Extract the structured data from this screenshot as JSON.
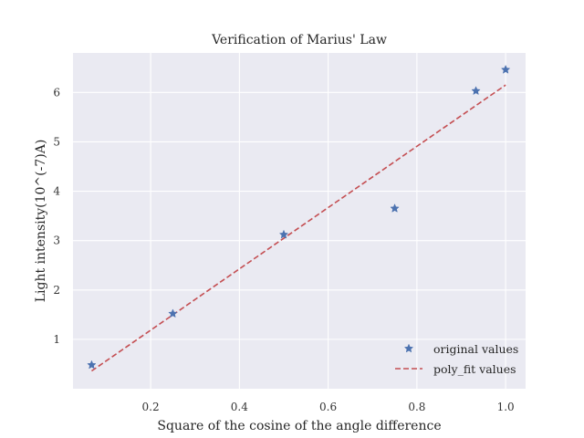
{
  "chart_data": {
    "type": "scatter",
    "title": "Verification of Marius' Law",
    "xlabel": "Square of the cosine of the angle difference",
    "ylabel": "Light intensity(10^(-7)A)",
    "xlim": [
      0.025,
      1.045
    ],
    "ylim": [
      0.0,
      6.8
    ],
    "xticks": [
      0.2,
      0.4,
      0.6,
      0.8,
      1.0
    ],
    "xtick_labels": [
      "0.2",
      "0.4",
      "0.6",
      "0.8",
      "1.0"
    ],
    "yticks": [
      1,
      2,
      3,
      4,
      5,
      6
    ],
    "ytick_labels": [
      "1",
      "2",
      "3",
      "4",
      "5",
      "6"
    ],
    "grid": true,
    "legend_position": "bottom-right",
    "series": [
      {
        "name": "original values",
        "kind": "scatter",
        "marker": "star",
        "color": "#4c72b0",
        "x": [
          0.067,
          0.25,
          0.5,
          0.75,
          0.933,
          1.0
        ],
        "y": [
          0.48,
          1.52,
          3.12,
          3.65,
          6.03,
          6.46
        ]
      },
      {
        "name": "poly_fit values",
        "kind": "line",
        "dash": true,
        "color": "#c44e52",
        "x": [
          0.067,
          1.0
        ],
        "y": [
          0.36,
          6.15
        ]
      }
    ]
  }
}
